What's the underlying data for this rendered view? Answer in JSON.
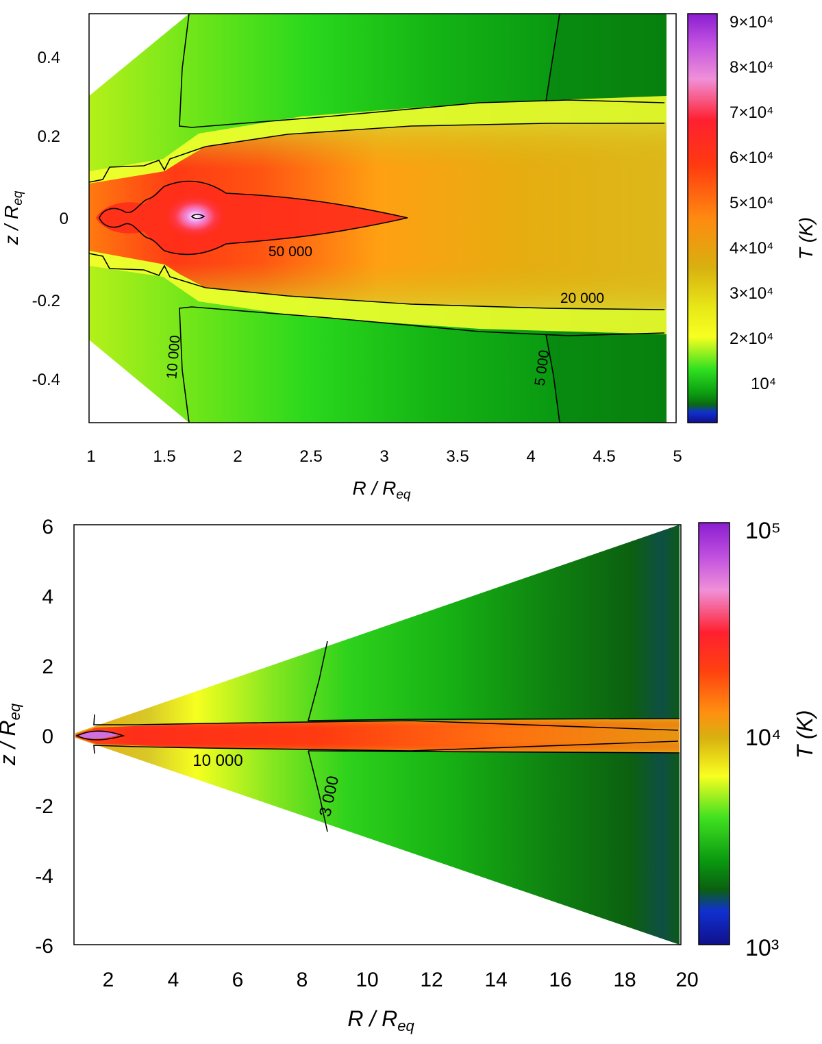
{
  "chart_data": [
    {
      "type": "heatmap",
      "xlabel": "R / Req",
      "ylabel": "z / Req",
      "xlim": [
        1,
        5
      ],
      "ylim": [
        -0.5,
        0.5
      ],
      "xticks": [
        "1",
        "1.5",
        "2",
        "2.5",
        "3",
        "3.5",
        "4",
        "4.5",
        "5"
      ],
      "yticks": [
        "0.4",
        "0.2",
        "0",
        "-0.2",
        "-0.4"
      ],
      "colorbar": {
        "label": "T (K)",
        "scale": "linear",
        "range": [
          3000,
          90000
        ],
        "ticks": [
          "9×10⁴",
          "8×10⁴",
          "7×10⁴",
          "6×10⁴",
          "5×10⁴",
          "4×10⁴",
          "3×10⁴",
          "2×10⁴",
          "10⁴"
        ]
      },
      "contour_labels": [
        {
          "text": "50 000",
          "level": 50000
        },
        {
          "text": "20 000",
          "level": 20000
        },
        {
          "text": "10 000",
          "level": 10000
        },
        {
          "text": "5 000",
          "level": 5000
        }
      ],
      "colors": {
        "disk_core": "#ff2a1a",
        "hot_spot": "#e888e0",
        "disk_body": "#dcb012",
        "wind_outer": "#0a9e10",
        "wind_inner": "#6ee81a",
        "disk_edge": "#ffff00"
      }
    },
    {
      "type": "heatmap",
      "xlabel": "R / Req",
      "ylabel": "z / Req",
      "xlim": [
        1,
        20
      ],
      "ylim": [
        -6,
        6
      ],
      "xticks": [
        "2",
        "4",
        "6",
        "8",
        "10",
        "12",
        "14",
        "16",
        "18",
        "20"
      ],
      "yticks": [
        "6",
        "4",
        "2",
        "0",
        "-2",
        "-4",
        "-6"
      ],
      "colorbar": {
        "label": "T (K)",
        "scale": "log",
        "range": [
          1000,
          100000
        ],
        "ticks": [
          "10⁵",
          "10⁴",
          "10³"
        ]
      },
      "contour_labels": [
        {
          "text": "10 000",
          "level": 10000
        },
        {
          "text": "3 000",
          "level": 3000
        }
      ],
      "colors": {
        "disk_core": "#ff2a10",
        "hot_spot": "#d070e0",
        "wind_inner": "#e8ff10",
        "wind_outer": "#0e5a10"
      }
    }
  ]
}
